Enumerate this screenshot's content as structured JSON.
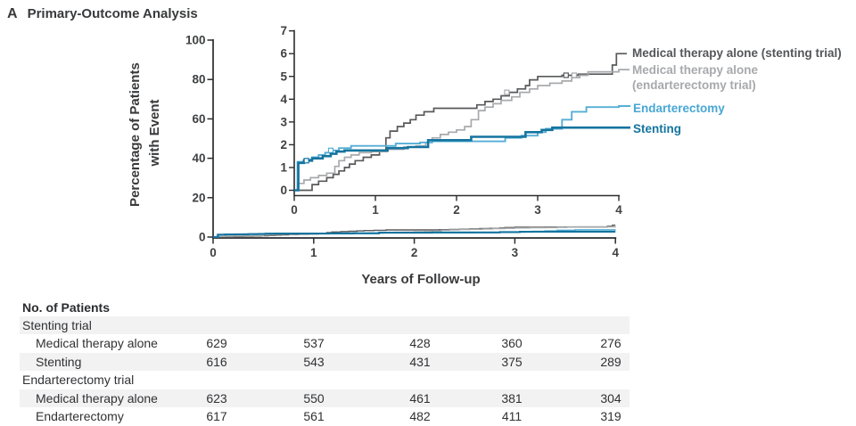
{
  "title": {
    "panel_letter": "A",
    "text": "Primary-Outcome Analysis"
  },
  "chart_data": {
    "type": "line",
    "subtype": "kaplan-meier-step",
    "xlabel": "Years of Follow-up",
    "ylabel": "Percentage of Patients with Event",
    "ylabel_lines": [
      "Percentage of Patients",
      "with Event"
    ],
    "main_axis": {
      "xlim": [
        0,
        4
      ],
      "ylim": [
        0,
        100
      ],
      "xticks": [
        0,
        1,
        2,
        3,
        4
      ],
      "yticks": [
        0,
        20,
        40,
        60,
        80,
        100
      ]
    },
    "inset_axis": {
      "xlim": [
        0,
        4
      ],
      "ylim": [
        0,
        7
      ],
      "xticks": [
        0,
        1,
        2,
        3,
        4
      ],
      "yticks": [
        0,
        1,
        2,
        3,
        4,
        5,
        6,
        7
      ]
    },
    "grid": false,
    "legend_position": "right",
    "series": [
      {
        "name": "Medical therapy alone (stenting trial)",
        "color": "#58595b",
        "width": 1.7,
        "points": [
          [
            0,
            0
          ],
          [
            0.22,
            0.25
          ],
          [
            0.3,
            0.4
          ],
          [
            0.4,
            0.55
          ],
          [
            0.48,
            0.7
          ],
          [
            0.55,
            0.85
          ],
          [
            0.62,
            1.0
          ],
          [
            0.68,
            1.15
          ],
          [
            0.75,
            1.3
          ],
          [
            0.85,
            1.45
          ],
          [
            0.95,
            1.55
          ],
          [
            1.05,
            1.75
          ],
          [
            1.13,
            2.3
          ],
          [
            1.18,
            2.6
          ],
          [
            1.27,
            2.8
          ],
          [
            1.35,
            2.95
          ],
          [
            1.43,
            3.1
          ],
          [
            1.5,
            3.3
          ],
          [
            1.6,
            3.45
          ],
          [
            1.72,
            3.6
          ],
          [
            2.25,
            3.75
          ],
          [
            2.35,
            3.9
          ],
          [
            2.45,
            4.0
          ],
          [
            2.55,
            4.15
          ],
          [
            2.65,
            4.3
          ],
          [
            2.75,
            4.45
          ],
          [
            2.85,
            4.6
          ],
          [
            2.9,
            4.85
          ],
          [
            3.0,
            5.0
          ],
          [
            3.3,
            5.05
          ],
          [
            3.5,
            5.1
          ],
          [
            3.92,
            5.5
          ],
          [
            3.97,
            6.0
          ],
          [
            4.0,
            6.0
          ]
        ],
        "censors": [
          [
            3.35,
            5.05
          ]
        ]
      },
      {
        "name": "Medical therapy alone (endarterectomy trial)",
        "color": "#a7a9ac",
        "width": 1.7,
        "points": [
          [
            0,
            0
          ],
          [
            0.04,
            0.3
          ],
          [
            0.12,
            0.45
          ],
          [
            0.2,
            0.55
          ],
          [
            0.3,
            0.65
          ],
          [
            0.4,
            0.75
          ],
          [
            0.5,
            1.05
          ],
          [
            0.55,
            1.3
          ],
          [
            0.62,
            1.45
          ],
          [
            0.7,
            1.55
          ],
          [
            0.8,
            1.65
          ],
          [
            0.95,
            1.7
          ],
          [
            1.15,
            1.8
          ],
          [
            1.35,
            1.9
          ],
          [
            1.5,
            1.95
          ],
          [
            1.62,
            2.1
          ],
          [
            1.7,
            2.3
          ],
          [
            1.8,
            2.45
          ],
          [
            1.9,
            2.55
          ],
          [
            2.0,
            2.65
          ],
          [
            2.1,
            2.8
          ],
          [
            2.18,
            3.1
          ],
          [
            2.27,
            3.5
          ],
          [
            2.35,
            3.65
          ],
          [
            2.45,
            3.8
          ],
          [
            2.55,
            3.95
          ],
          [
            2.68,
            4.1
          ],
          [
            2.78,
            4.3
          ],
          [
            2.9,
            4.45
          ],
          [
            3.0,
            4.6
          ],
          [
            3.15,
            4.7
          ],
          [
            3.3,
            4.8
          ],
          [
            3.42,
            4.95
          ],
          [
            3.52,
            5.05
          ],
          [
            3.62,
            5.2
          ],
          [
            4.0,
            5.3
          ]
        ],
        "censors": [
          [
            2.62,
            4.3
          ],
          [
            3.45,
            5.05
          ]
        ]
      },
      {
        "name": "Endarterectomy",
        "color": "#56aed6",
        "width": 1.9,
        "points": [
          [
            0,
            0
          ],
          [
            0.04,
            1.25
          ],
          [
            0.12,
            1.35
          ],
          [
            0.22,
            1.45
          ],
          [
            0.3,
            1.55
          ],
          [
            0.38,
            1.65
          ],
          [
            0.45,
            1.75
          ],
          [
            0.55,
            1.85
          ],
          [
            0.7,
            1.95
          ],
          [
            1.25,
            2.05
          ],
          [
            1.55,
            2.1
          ],
          [
            1.7,
            2.15
          ],
          [
            2.6,
            2.3
          ],
          [
            2.8,
            2.4
          ],
          [
            3.0,
            2.55
          ],
          [
            3.1,
            2.7
          ],
          [
            3.3,
            3.1
          ],
          [
            3.42,
            3.45
          ],
          [
            3.6,
            3.65
          ],
          [
            4.0,
            3.7
          ]
        ],
        "censors": [
          [
            0.45,
            1.75
          ]
        ]
      },
      {
        "name": "Stenting",
        "color": "#15749f",
        "width": 2.6,
        "points": [
          [
            0,
            0
          ],
          [
            0.05,
            1.2
          ],
          [
            0.12,
            1.3
          ],
          [
            0.22,
            1.4
          ],
          [
            0.35,
            1.5
          ],
          [
            0.45,
            1.6
          ],
          [
            0.52,
            1.7
          ],
          [
            0.62,
            1.75
          ],
          [
            1.15,
            1.85
          ],
          [
            1.4,
            1.9
          ],
          [
            1.65,
            2.2
          ],
          [
            2.18,
            2.35
          ],
          [
            2.85,
            2.55
          ],
          [
            3.05,
            2.65
          ],
          [
            3.18,
            2.75
          ],
          [
            4.0,
            2.75
          ]
        ],
        "censors": [
          [
            0.15,
            1.3
          ]
        ]
      }
    ]
  },
  "legend": {
    "items": [
      {
        "label_lines": [
          "Medical therapy alone (stenting trial)"
        ],
        "color": "#555659"
      },
      {
        "label_lines": [
          "Medical therapy alone",
          "(endarterectomy trial)"
        ],
        "color": "#a7a9ac"
      },
      {
        "label_lines": [
          "Endarterectomy"
        ],
        "color": "#48a7d4"
      },
      {
        "label_lines": [
          "Stenting"
        ],
        "color": "#15749f"
      }
    ]
  },
  "table": {
    "header": "No. of Patients",
    "rows": [
      {
        "label": "Stenting trial",
        "indent": false,
        "shaded": true,
        "values": []
      },
      {
        "label": "Medical therapy alone",
        "indent": true,
        "shaded": false,
        "values": [
          "629",
          "537",
          "428",
          "360",
          "276"
        ]
      },
      {
        "label": "Stenting",
        "indent": true,
        "shaded": true,
        "values": [
          "616",
          "543",
          "431",
          "375",
          "289"
        ]
      },
      {
        "label": "Endarterectomy trial",
        "indent": false,
        "shaded": false,
        "values": []
      },
      {
        "label": "Medical therapy alone",
        "indent": true,
        "shaded": true,
        "values": [
          "623",
          "550",
          "461",
          "381",
          "304"
        ]
      },
      {
        "label": "Endarterectomy",
        "indent": true,
        "shaded": false,
        "values": [
          "617",
          "561",
          "482",
          "411",
          "319"
        ]
      }
    ]
  }
}
